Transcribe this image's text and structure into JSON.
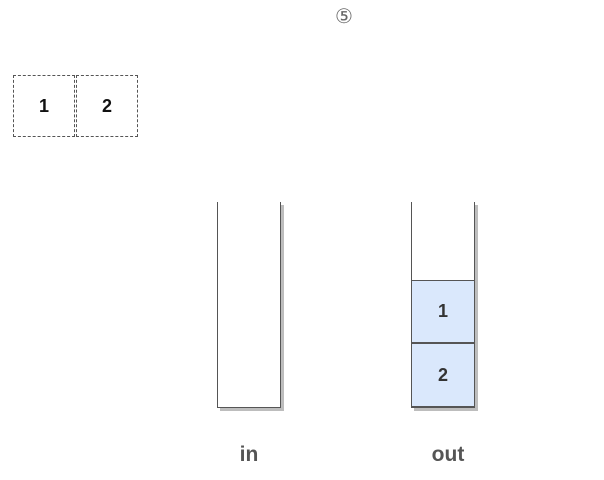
{
  "step_marker": "⑤",
  "queue": {
    "cells": [
      "1",
      "2"
    ]
  },
  "stacks": {
    "in": {
      "label": "in",
      "items": []
    },
    "out": {
      "label": "out",
      "items": [
        "1",
        "2"
      ]
    }
  },
  "colors": {
    "item_fill": "#dae8fc",
    "stroke": "#555555",
    "shadow": "#bdbdbd"
  }
}
